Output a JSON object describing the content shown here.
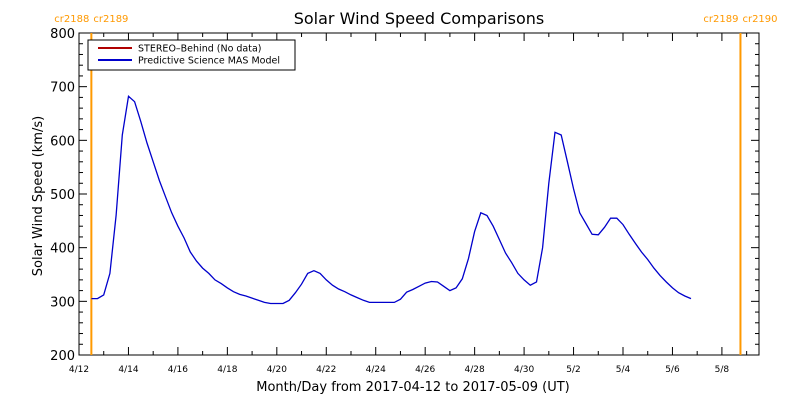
{
  "chart_data": {
    "type": "line",
    "title": "Solar Wind Speed Comparisons",
    "xlabel": "Month/Day from 2017-04-12 to 2017-05-09 (UT)",
    "ylabel": "Solar Wind Speed (km/s)",
    "xlim": [
      "2017-04-12",
      "2017-05-09"
    ],
    "ylim": [
      200,
      800
    ],
    "x_ticks": [
      {
        "date": "2017-04-12",
        "label": "4/12"
      },
      {
        "date": "2017-04-14",
        "label": "4/14"
      },
      {
        "date": "2017-04-16",
        "label": "4/16"
      },
      {
        "date": "2017-04-18",
        "label": "4/18"
      },
      {
        "date": "2017-04-20",
        "label": "4/20"
      },
      {
        "date": "2017-04-22",
        "label": "4/22"
      },
      {
        "date": "2017-04-24",
        "label": "4/24"
      },
      {
        "date": "2017-04-26",
        "label": "4/26"
      },
      {
        "date": "2017-04-28",
        "label": "4/28"
      },
      {
        "date": "2017-04-30",
        "label": "4/30"
      },
      {
        "date": "2017-05-02",
        "label": "5/2"
      },
      {
        "date": "2017-05-04",
        "label": "5/4"
      },
      {
        "date": "2017-05-06",
        "label": "5/6"
      },
      {
        "date": "2017-05-08",
        "label": "5/8"
      }
    ],
    "y_ticks": [
      200,
      300,
      400,
      500,
      600,
      700,
      800
    ],
    "grid": false,
    "legend_position": "top-left",
    "series": [
      {
        "name": "STEREO–Behind (No data)",
        "color": "#b00000",
        "points": []
      },
      {
        "name": "Predictive Science MAS Model",
        "color": "#0000cc",
        "points": [
          [
            "2017-04-12 12:00",
            305
          ],
          [
            "2017-04-12 18:00",
            305
          ],
          [
            "2017-04-13 00:00",
            312
          ],
          [
            "2017-04-13 06:00",
            352
          ],
          [
            "2017-04-13 12:00",
            460
          ],
          [
            "2017-04-13 18:00",
            610
          ],
          [
            "2017-04-14 00:00",
            682
          ],
          [
            "2017-04-14 06:00",
            672
          ],
          [
            "2017-04-14 12:00",
            635
          ],
          [
            "2017-04-14 18:00",
            595
          ],
          [
            "2017-04-15 00:00",
            560
          ],
          [
            "2017-04-15 06:00",
            525
          ],
          [
            "2017-04-15 12:00",
            495
          ],
          [
            "2017-04-15 18:00",
            465
          ],
          [
            "2017-04-16 00:00",
            440
          ],
          [
            "2017-04-16 06:00",
            418
          ],
          [
            "2017-04-16 12:00",
            392
          ],
          [
            "2017-04-16 18:00",
            375
          ],
          [
            "2017-04-17 00:00",
            362
          ],
          [
            "2017-04-17 06:00",
            352
          ],
          [
            "2017-04-17 12:00",
            340
          ],
          [
            "2017-04-17 18:00",
            333
          ],
          [
            "2017-04-18 00:00",
            325
          ],
          [
            "2017-04-18 06:00",
            318
          ],
          [
            "2017-04-18 12:00",
            313
          ],
          [
            "2017-04-18 18:00",
            310
          ],
          [
            "2017-04-19 00:00",
            306
          ],
          [
            "2017-04-19 06:00",
            302
          ],
          [
            "2017-04-19 12:00",
            298
          ],
          [
            "2017-04-19 18:00",
            296
          ],
          [
            "2017-04-20 00:00",
            296
          ],
          [
            "2017-04-20 06:00",
            296
          ],
          [
            "2017-04-20 12:00",
            302
          ],
          [
            "2017-04-20 18:00",
            316
          ],
          [
            "2017-04-21 00:00",
            332
          ],
          [
            "2017-04-21 06:00",
            352
          ],
          [
            "2017-04-21 12:00",
            357
          ],
          [
            "2017-04-21 18:00",
            352
          ],
          [
            "2017-04-22 00:00",
            340
          ],
          [
            "2017-04-22 06:00",
            330
          ],
          [
            "2017-04-22 12:00",
            323
          ],
          [
            "2017-04-22 18:00",
            318
          ],
          [
            "2017-04-23 00:00",
            312
          ],
          [
            "2017-04-23 06:00",
            307
          ],
          [
            "2017-04-23 12:00",
            302
          ],
          [
            "2017-04-23 18:00",
            298
          ],
          [
            "2017-04-24 00:00",
            298
          ],
          [
            "2017-04-24 06:00",
            298
          ],
          [
            "2017-04-24 12:00",
            298
          ],
          [
            "2017-04-24 18:00",
            298
          ],
          [
            "2017-04-25 00:00",
            304
          ],
          [
            "2017-04-25 06:00",
            317
          ],
          [
            "2017-04-25 12:00",
            322
          ],
          [
            "2017-04-25 18:00",
            328
          ],
          [
            "2017-04-26 00:00",
            334
          ],
          [
            "2017-04-26 06:00",
            337
          ],
          [
            "2017-04-26 12:00",
            336
          ],
          [
            "2017-04-26 18:00",
            328
          ],
          [
            "2017-04-27 00:00",
            320
          ],
          [
            "2017-04-27 06:00",
            325
          ],
          [
            "2017-04-27 12:00",
            342
          ],
          [
            "2017-04-27 18:00",
            380
          ],
          [
            "2017-04-28 00:00",
            430
          ],
          [
            "2017-04-28 06:00",
            465
          ],
          [
            "2017-04-28 12:00",
            460
          ],
          [
            "2017-04-28 18:00",
            440
          ],
          [
            "2017-04-29 00:00",
            415
          ],
          [
            "2017-04-29 06:00",
            390
          ],
          [
            "2017-04-29 12:00",
            372
          ],
          [
            "2017-04-29 18:00",
            352
          ],
          [
            "2017-04-30 00:00",
            340
          ],
          [
            "2017-04-30 06:00",
            330
          ],
          [
            "2017-04-30 12:00",
            336
          ],
          [
            "2017-04-30 18:00",
            400
          ],
          [
            "2017-05-01 00:00",
            520
          ],
          [
            "2017-05-01 06:00",
            615
          ],
          [
            "2017-05-01 12:00",
            610
          ],
          [
            "2017-05-01 18:00",
            560
          ],
          [
            "2017-05-02 00:00",
            510
          ],
          [
            "2017-05-02 06:00",
            465
          ],
          [
            "2017-05-02 12:00",
            445
          ],
          [
            "2017-05-02 18:00",
            425
          ],
          [
            "2017-05-03 00:00",
            424
          ],
          [
            "2017-05-03 06:00",
            438
          ],
          [
            "2017-05-03 12:00",
            455
          ],
          [
            "2017-05-03 18:00",
            455
          ],
          [
            "2017-05-04 00:00",
            443
          ],
          [
            "2017-05-04 06:00",
            425
          ],
          [
            "2017-05-04 12:00",
            408
          ],
          [
            "2017-05-04 18:00",
            392
          ],
          [
            "2017-05-05 00:00",
            378
          ],
          [
            "2017-05-05 06:00",
            362
          ],
          [
            "2017-05-05 12:00",
            348
          ],
          [
            "2017-05-05 18:00",
            336
          ],
          [
            "2017-05-06 00:00",
            325
          ],
          [
            "2017-05-06 06:00",
            316
          ],
          [
            "2017-05-06 12:00",
            310
          ],
          [
            "2017-05-06 18:00",
            305
          ]
        ]
      }
    ],
    "vlines": [
      {
        "date": "2017-04-12 12:00",
        "color": "#ff9900",
        "label_left": "cr2188",
        "label_right": "cr2189"
      },
      {
        "date": "2017-05-08 18:00",
        "color": "#ff9900",
        "label_left": "cr2189",
        "label_right": "cr2190"
      }
    ]
  }
}
